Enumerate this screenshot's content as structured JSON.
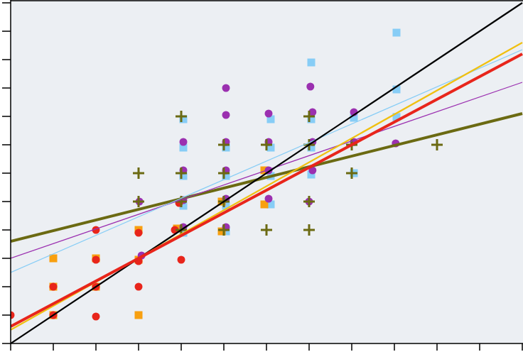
{
  "chart_data": {
    "type": "scatter",
    "tick_labels": false,
    "grid": false,
    "xlim": [
      0,
      12
    ],
    "ylim": [
      0,
      12
    ],
    "xticks": [
      0,
      1,
      2,
      3,
      4,
      5,
      6,
      7,
      8,
      9,
      10,
      11,
      12
    ],
    "yticks": [
      0,
      1,
      2,
      3,
      4,
      5,
      6,
      7,
      8,
      9,
      10,
      11,
      12
    ],
    "series": [
      {
        "type": "scatter",
        "marker": "square",
        "color": "#87cdf6",
        "x": [
          4.05,
          4.05,
          4.05,
          4.05,
          4.05,
          5.05,
          5.05,
          5.05,
          5.05,
          6.1,
          6.1,
          6.1,
          6.1,
          7.05,
          7.05,
          7.05,
          7.05,
          8.05,
          8.05,
          9.05,
          9.05,
          9.05
        ],
        "values": [
          7.9,
          6.9,
          5.9,
          4.85,
          3.9,
          6.9,
          5.9,
          4.85,
          3.95,
          7.9,
          6.9,
          5.9,
          4.9,
          9.9,
          7.9,
          6.9,
          5.95,
          7.95,
          6.0,
          10.95,
          8.95,
          7.98
        ]
      },
      {
        "type": "scatter",
        "marker": "square",
        "color": "#f8a010",
        "x": [
          1,
          1,
          1,
          2,
          2,
          3,
          3,
          3,
          3.9,
          4.95,
          4.95,
          5.95,
          5.95
        ],
        "values": [
          3,
          2,
          1,
          3,
          2,
          4,
          2.95,
          1,
          4.05,
          3.95,
          5,
          4.9,
          6.1
        ]
      },
      {
        "type": "scatter",
        "marker": "circle",
        "color": "#9b30b0",
        "x": [
          3.07,
          3.02,
          4.05,
          4.05,
          4.05,
          4.05,
          5.05,
          5.05,
          5.05,
          5.05,
          5.05,
          5.05,
          6.05,
          6.05,
          6.05,
          6.05,
          7.03,
          7.08,
          7.08,
          7.08,
          7.0,
          8.05,
          8.05,
          9.03
        ],
        "values": [
          3.1,
          5.0,
          7.1,
          6.1,
          5.05,
          4.1,
          9.0,
          8.05,
          7.1,
          6.1,
          5.1,
          4.1,
          8.1,
          7.1,
          6.1,
          5.1,
          9.05,
          8.15,
          7.1,
          6.1,
          5.0,
          8.15,
          7.1,
          7.05
        ]
      },
      {
        "type": "scatter",
        "marker": "circle",
        "color": "#e8251b",
        "x": [
          0,
          1,
          1,
          2,
          2,
          2,
          2,
          3,
          3,
          3,
          3.85,
          3.95,
          4
        ],
        "values": [
          1,
          2,
          1,
          4,
          2.95,
          2,
          0.95,
          3.9,
          2.9,
          2,
          4,
          4.95,
          2.95
        ]
      },
      {
        "type": "scatter",
        "marker": "plus",
        "color": "#6b6a12",
        "x": [
          3,
          3,
          4,
          4,
          4,
          4,
          5,
          5,
          5,
          5,
          6,
          6,
          7,
          7,
          7,
          7,
          8,
          8,
          10
        ],
        "values": [
          6,
          5,
          8,
          6,
          5,
          4,
          7,
          6,
          5,
          4,
          7,
          4,
          8,
          7,
          5,
          4,
          7,
          6,
          7
        ]
      },
      {
        "type": "line",
        "line_style": "thick",
        "color": "#6b6a12",
        "x": [
          0,
          12
        ],
        "values": [
          3.6,
          8.1
        ]
      },
      {
        "type": "line",
        "line_style": "thin",
        "color": "#9b30b0",
        "x": [
          0,
          12
        ],
        "values": [
          3.0,
          9.2
        ]
      },
      {
        "type": "line",
        "line_style": "thin",
        "color": "#87cdf6",
        "x": [
          0,
          12
        ],
        "values": [
          2.5,
          10.35
        ]
      },
      {
        "type": "line",
        "line_style": "medium",
        "color": "#000000",
        "x": [
          0,
          12
        ],
        "values": [
          0,
          12
        ]
      },
      {
        "type": "line",
        "line_style": "medium",
        "color": "#f0c010",
        "x": [
          0,
          12
        ],
        "values": [
          0.48,
          10.6
        ]
      },
      {
        "type": "line",
        "line_style": "thick",
        "color": "#e8251b",
        "x": [
          0,
          12
        ],
        "values": [
          0.6,
          10.2
        ]
      }
    ]
  }
}
